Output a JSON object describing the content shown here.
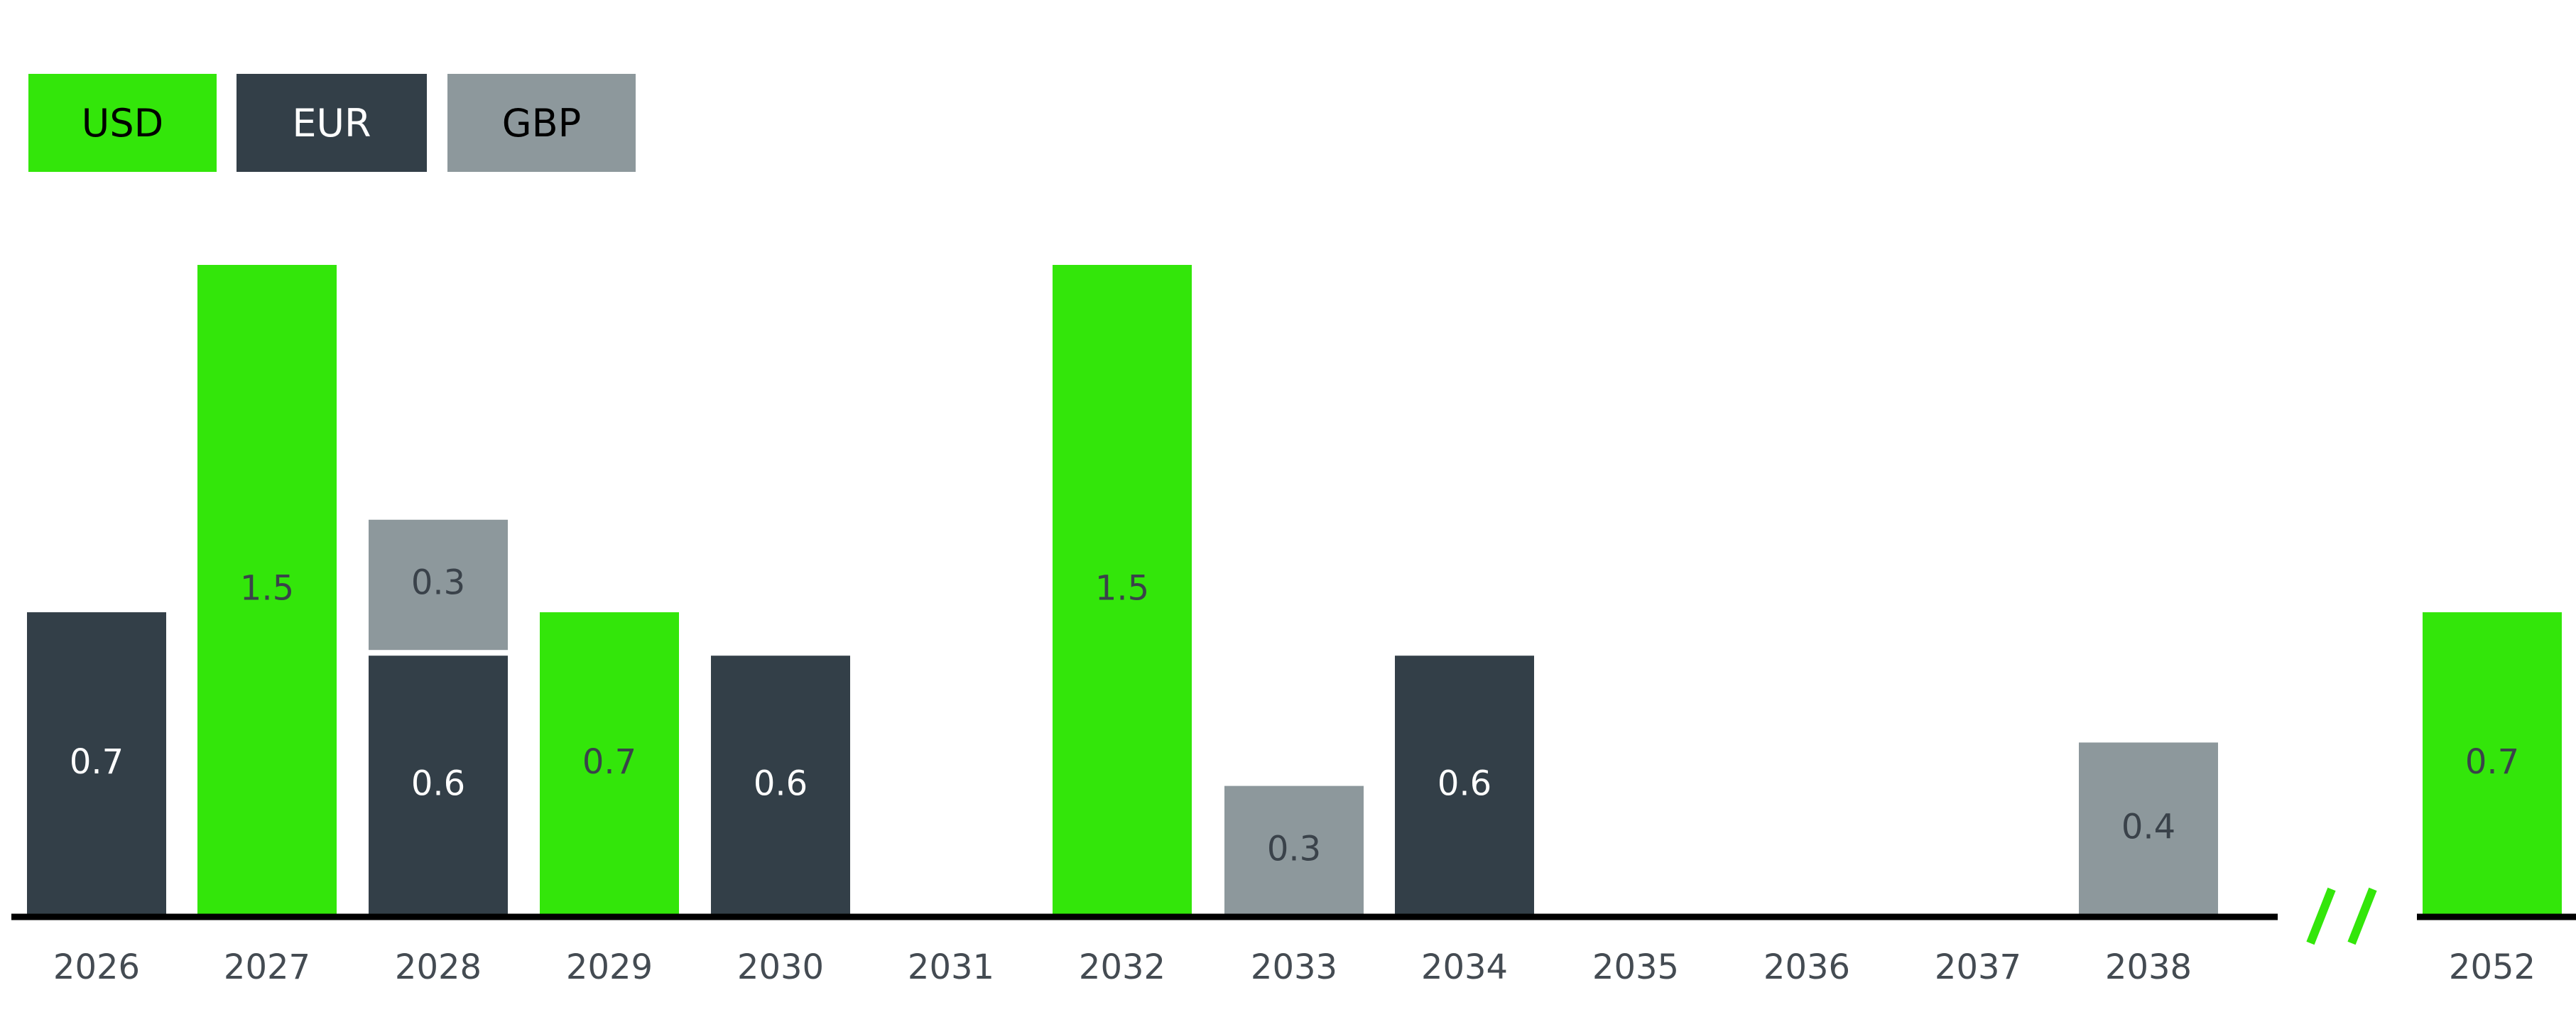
{
  "chart_data": {
    "type": "bar",
    "stacked": true,
    "legend_position": "top-left",
    "grid": false,
    "axis_break": "//",
    "categories": [
      "2026",
      "2027",
      "2028",
      "2029",
      "2030",
      "2031",
      "2032",
      "2033",
      "2034",
      "2035",
      "2036",
      "2037",
      "2038",
      "2052"
    ],
    "series": [
      {
        "name": "USD",
        "color": "#33e60a",
        "label_color": "#3a424a",
        "values": [
          0,
          1.5,
          0,
          0.7,
          0,
          0,
          1.5,
          0,
          0,
          0,
          0,
          0,
          0,
          0.7
        ]
      },
      {
        "name": "EUR",
        "color": "#333f48",
        "label_color": "#ffffff",
        "values": [
          0.7,
          0,
          0.6,
          0,
          0.6,
          0,
          0,
          0,
          0.6,
          0,
          0,
          0,
          0,
          0
        ]
      },
      {
        "name": "GBP",
        "color": "#8d989c",
        "label_color": "#3a424a",
        "values": [
          0,
          0,
          0.3,
          0,
          0,
          0,
          0,
          0.3,
          0,
          0,
          0,
          0,
          0.4,
          0
        ]
      }
    ],
    "ylim": [
      0,
      1.5
    ],
    "xlabel": "",
    "ylabel": "",
    "title": ""
  },
  "legend": [
    {
      "label": "USD",
      "color": "#33e60a",
      "text_color": "#000000"
    },
    {
      "label": "EUR",
      "color": "#333f48",
      "text_color": "#ffffff"
    },
    {
      "label": "GBP",
      "color": "#8d989c",
      "text_color": "#000000"
    }
  ],
  "break_mark_color": "#33e60a"
}
